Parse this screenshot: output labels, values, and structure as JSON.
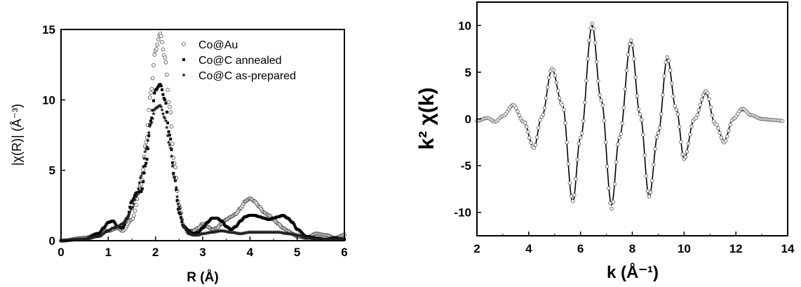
{
  "chart_data": [
    {
      "type": "scatter",
      "xlabel": "R (Å)",
      "ylabel": "|χ(R)| (Å⁻³)",
      "xlim": [
        0,
        6
      ],
      "ylim": [
        0,
        15
      ],
      "xticks": [
        "0",
        "1",
        "2",
        "3",
        "4",
        "5",
        "6"
      ],
      "yticks": [
        "0",
        "5",
        "10",
        "15"
      ],
      "legend_position": "top-right",
      "series": [
        {
          "name": "Co@Au",
          "marker": "open-circle",
          "x": [
            0.0,
            0.5,
            0.8,
            1.0,
            1.2,
            1.3,
            1.5,
            1.7,
            1.8,
            1.9,
            2.0,
            2.1,
            2.2,
            2.3,
            2.4,
            2.5,
            2.6,
            2.7,
            2.8,
            2.9,
            3.0,
            3.1,
            3.2,
            3.3,
            3.4,
            3.5,
            3.6,
            3.7,
            3.8,
            3.9,
            4.0,
            4.1,
            4.2,
            4.3,
            4.4,
            4.5,
            4.6,
            4.7,
            4.8,
            4.9,
            5.0,
            5.2,
            5.4,
            5.6,
            5.8,
            6.0
          ],
          "values": [
            0.0,
            0.2,
            0.5,
            0.7,
            0.9,
            0.7,
            1.5,
            4.0,
            7.0,
            10.5,
            13.5,
            14.7,
            13.0,
            9.5,
            5.5,
            2.5,
            1.0,
            0.7,
            0.7,
            0.9,
            1.2,
            1.0,
            0.8,
            0.9,
            1.2,
            1.5,
            1.7,
            1.9,
            2.3,
            2.8,
            3.0,
            2.8,
            2.4,
            2.0,
            1.8,
            1.5,
            1.2,
            0.9,
            0.7,
            0.5,
            0.3,
            0.2,
            0.5,
            0.4,
            0.2,
            0.4
          ]
        },
        {
          "name": "Co@C annealed",
          "marker": "filled-square",
          "x": [
            0.0,
            0.5,
            0.8,
            0.9,
            1.0,
            1.1,
            1.2,
            1.3,
            1.4,
            1.5,
            1.6,
            1.7,
            1.8,
            1.9,
            2.0,
            2.1,
            2.2,
            2.3,
            2.4,
            2.5,
            2.6,
            2.7,
            2.8,
            2.9,
            3.0,
            3.1,
            3.2,
            3.3,
            3.4,
            3.5,
            3.6,
            3.7,
            3.8,
            3.9,
            4.0,
            4.1,
            4.2,
            4.3,
            4.4,
            4.5,
            4.6,
            4.7,
            4.8,
            4.9,
            5.0,
            5.2,
            5.4,
            5.6,
            5.8,
            6.0
          ],
          "values": [
            0.0,
            0.1,
            0.5,
            0.9,
            1.3,
            1.4,
            1.0,
            0.9,
            1.6,
            2.8,
            3.4,
            3.5,
            5.5,
            8.5,
            10.7,
            11.1,
            10.0,
            7.5,
            4.5,
            2.0,
            1.0,
            0.7,
            0.5,
            0.6,
            0.9,
            1.3,
            1.6,
            1.6,
            1.4,
            1.0,
            0.8,
            1.0,
            1.4,
            1.7,
            1.8,
            1.8,
            1.7,
            1.6,
            1.5,
            1.6,
            1.7,
            1.8,
            1.6,
            1.3,
            0.8,
            0.3,
            0.2,
            0.1,
            0.2,
            0.1
          ]
        },
        {
          "name": "Co@C as-prepared",
          "marker": "star",
          "x": [
            0.0,
            0.5,
            0.8,
            1.0,
            1.1,
            1.2,
            1.3,
            1.4,
            1.5,
            1.6,
            1.7,
            1.8,
            1.9,
            2.0,
            2.1,
            2.2,
            2.3,
            2.4,
            2.5,
            2.6,
            2.7,
            2.8,
            2.9,
            3.0,
            3.2,
            3.4,
            3.6,
            3.8,
            4.0,
            4.2,
            4.4,
            4.6,
            4.8,
            5.0,
            5.2,
            5.4,
            5.6,
            5.8,
            6.0
          ],
          "values": [
            0.0,
            0.1,
            0.3,
            0.7,
            0.9,
            1.0,
            1.2,
            1.6,
            2.3,
            3.2,
            4.6,
            6.5,
            8.3,
            9.4,
            9.6,
            8.7,
            6.8,
            4.5,
            2.4,
            1.0,
            0.5,
            0.4,
            0.4,
            0.5,
            0.6,
            0.7,
            0.6,
            0.5,
            0.6,
            0.6,
            0.6,
            0.6,
            0.5,
            0.4,
            0.2,
            0.1,
            0.1,
            0.1,
            0.1
          ]
        }
      ]
    },
    {
      "type": "line",
      "xlabel": "k (Å⁻¹)",
      "ylabel": "k² χ(k)",
      "xlim": [
        2,
        14
      ],
      "ylim": [
        -12.5,
        12.5
      ],
      "xticks": [
        "2",
        "4",
        "6",
        "8",
        "10",
        "12",
        "14"
      ],
      "yticks": [
        "-10",
        "-5",
        "0",
        "5",
        "10"
      ],
      "series": [
        {
          "name": "",
          "style": "solid-line",
          "x": [
            2.0,
            2.4,
            2.7,
            3.0,
            3.4,
            3.8,
            4.2,
            4.5,
            4.9,
            5.3,
            5.7,
            6.0,
            6.45,
            6.8,
            7.2,
            7.5,
            7.95,
            8.3,
            8.65,
            9.0,
            9.35,
            9.7,
            10.0,
            10.4,
            10.85,
            11.2,
            11.55,
            11.9,
            12.25,
            12.6,
            13.0,
            13.4,
            13.8
          ],
          "values": [
            -0.2,
            0.1,
            -0.3,
            0.3,
            1.4,
            -0.3,
            -3.1,
            0.2,
            5.3,
            1.5,
            -8.9,
            -2.0,
            10.0,
            2.0,
            -9.2,
            -2.0,
            8.3,
            0.5,
            -8.3,
            -1.5,
            6.5,
            1.0,
            -4.2,
            0.0,
            2.7,
            -0.5,
            -2.3,
            0.0,
            0.9,
            0.4,
            0.0,
            -0.1,
            -0.2
          ]
        },
        {
          "name": "",
          "style": "open-circle",
          "x": [
            2.0,
            2.4,
            2.7,
            3.0,
            3.4,
            3.8,
            4.2,
            4.5,
            4.9,
            5.3,
            5.7,
            6.0,
            6.45,
            6.8,
            7.2,
            7.5,
            7.95,
            8.3,
            8.65,
            9.0,
            9.35,
            9.7,
            10.0,
            10.4,
            10.85,
            11.2,
            11.55,
            11.9,
            12.25,
            12.6,
            13.0,
            13.4,
            13.8
          ],
          "values": [
            -0.2,
            0.1,
            -0.3,
            0.3,
            1.5,
            -0.3,
            -3.1,
            0.2,
            5.4,
            1.5,
            -8.8,
            -2.0,
            10.2,
            2.0,
            -9.6,
            -2.0,
            8.4,
            0.5,
            -8.3,
            -1.5,
            6.6,
            1.0,
            -4.3,
            0.0,
            3.0,
            -0.5,
            -2.5,
            0.0,
            1.1,
            0.4,
            0.0,
            -0.1,
            -0.2
          ]
        }
      ]
    }
  ]
}
